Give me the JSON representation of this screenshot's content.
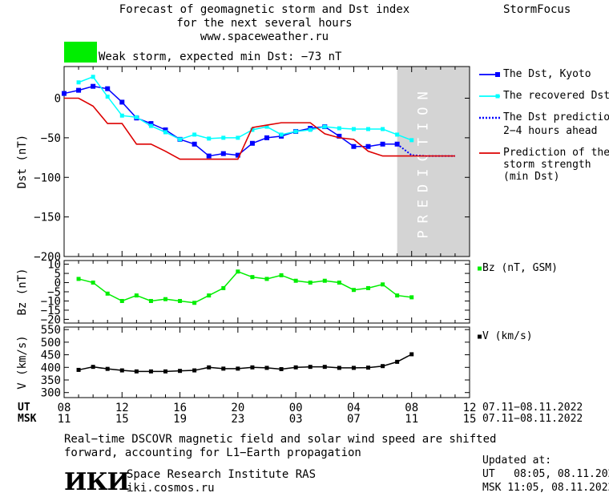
{
  "header": {
    "title_lines": [
      "Forecast of geomagnetic storm and Dst index",
      "for the next several hours",
      "www.spaceweather.ru"
    ],
    "brand": "StormFocus",
    "storm_label": "Weak storm, expected min Dst: −73 nT",
    "storm_color": "#00ee00"
  },
  "legend": {
    "kyoto": "The Dst, Kyoto",
    "recovered": "The recovered Dst",
    "prediction_1": "The Dst prediction",
    "prediction_2": "2−4 hours ahead",
    "strength_1": "Prediction of the",
    "strength_2": "storm strength",
    "strength_3": "(min Dst)",
    "bz": "Bz (nT, GSM)",
    "v": "V (km/s)"
  },
  "axis_labels": {
    "ut": "UT",
    "msk": "MSK",
    "ut_range": "07.11−08.11.2022",
    "msk_range": "07.11−08.11.2022"
  },
  "footer": {
    "note_1": "Real−time DSCOVR magnetic field and solar wind speed are shifted",
    "note_2": "forward, accounting for L1−Earth propagation",
    "logo": "ИКИ",
    "institute": "Space Research Institute RAS",
    "website": "iki.cosmos.ru",
    "updated_label": "Updated at:",
    "updated_ut": "UT   08:05, 08.11.2022",
    "updated_msk": "MSK 11:05, 08.11.2022"
  },
  "chart_data": {
    "x_range": [
      8,
      36
    ],
    "x_ticks_ut": [
      "08",
      "12",
      "16",
      "20",
      "00",
      "04",
      "08",
      "12"
    ],
    "x_ticks_msk": [
      "11",
      "15",
      "19",
      "23",
      "03",
      "07",
      "11",
      "15"
    ],
    "prediction_label": "PREDICTION",
    "prediction_start": 31,
    "colors": {
      "kyoto": "#0000ff",
      "recovered": "#00ffff",
      "prediction": "#0000ff",
      "strength": "#dd0000",
      "bz": "#00ee00",
      "v": "#000000",
      "shade": "#d4d4d4"
    },
    "panels": [
      {
        "name": "dst",
        "ylabel": "Dst (nT)",
        "ylim": [
          -200,
          40
        ],
        "yticks": [
          "0",
          "−50",
          "−100",
          "−150",
          "−200"
        ],
        "ytick_values": [
          0,
          -50,
          -100,
          -150,
          -200
        ],
        "series": [
          {
            "key": "kyoto",
            "x": [
              8,
              9,
              10,
              11,
              12,
              13,
              14,
              15,
              16,
              17,
              18,
              19,
              20,
              21,
              22,
              23,
              24,
              25,
              26,
              27,
              28,
              29,
              30,
              31
            ],
            "y": [
              6,
              10,
              15,
              12,
              -5,
              -25,
              -32,
              -40,
              -52,
              -58,
              -73,
              -70,
              -72,
              -57,
              -50,
              -48,
              -42,
              -38,
              -36,
              -48,
              -61,
              -61,
              -58,
              -58
            ]
          },
          {
            "key": "recovered",
            "x": [
              9,
              10,
              11,
              12,
              13,
              14,
              15,
              16,
              17,
              18,
              19,
              20,
              21,
              22,
              23,
              24,
              25,
              26,
              27,
              28,
              29,
              30,
              31,
              32
            ],
            "y": [
              20,
              27,
              2,
              -22,
              -24,
              -35,
              -43,
              -52,
              -46,
              -51,
              -50,
              -50,
              -40,
              -36,
              -46,
              -42,
              -40,
              -36,
              -38,
              -39,
              -39,
              -39,
              -46,
              -53
            ]
          },
          {
            "key": "prediction",
            "x": [
              31,
              32,
              33,
              34,
              35
            ],
            "y": [
              -58,
              -72,
              -73,
              -73,
              -73
            ]
          },
          {
            "key": "strength",
            "x": [
              8,
              9,
              10,
              11,
              12,
              13,
              14,
              15,
              16,
              17,
              18,
              19,
              20,
              21,
              22,
              23,
              24,
              25,
              26,
              27,
              28,
              29,
              30,
              31,
              32,
              33,
              34,
              35
            ],
            "y": [
              0,
              0,
              -10,
              -32,
              -32,
              -58,
              -58,
              -67,
              -77,
              -77,
              -77,
              -77,
              -77,
              -37,
              -34,
              -31,
              -31,
              -31,
              -45,
              -50,
              -52,
              -67,
              -73,
              -73,
              -73,
              -73,
              -73,
              -73
            ]
          }
        ]
      },
      {
        "name": "bz",
        "ylabel": "Bz (nT)",
        "ylim": [
          -22,
          12
        ],
        "yticks": [
          "10",
          "5",
          "0",
          "−5",
          "−10",
          "−15",
          "−20"
        ],
        "ytick_values": [
          10,
          5,
          0,
          -5,
          -10,
          -15,
          -20
        ],
        "series": [
          {
            "key": "bz",
            "x": [
              9,
              10,
              11,
              12,
              13,
              14,
              15,
              16,
              17,
              18,
              19,
              20,
              21,
              22,
              23,
              24,
              25,
              26,
              27,
              28,
              29,
              30,
              31,
              32
            ],
            "y": [
              2,
              0,
              -6,
              -10,
              -7,
              -10,
              -9,
              -10,
              -11,
              -7,
              -3,
              6,
              3,
              2,
              4,
              1,
              0,
              1,
              0,
              -4,
              -3,
              -1,
              -7,
              -8
            ]
          }
        ]
      },
      {
        "name": "v",
        "ylabel": "V (km/s)",
        "ylim": [
          280,
          560
        ],
        "yticks": [
          "550",
          "500",
          "450",
          "400",
          "350",
          "300"
        ],
        "ytick_values": [
          550,
          500,
          450,
          400,
          350,
          300
        ],
        "series": [
          {
            "key": "v",
            "x": [
              9,
              10,
              11,
              12,
              13,
              14,
              15,
              16,
              17,
              18,
              19,
              20,
              21,
              22,
              23,
              24,
              25,
              26,
              27,
              28,
              29,
              30,
              31,
              32
            ],
            "y": [
              390,
              402,
              394,
              388,
              384,
              384,
              384,
              386,
              388,
              400,
              395,
              395,
              400,
              398,
              393,
              400,
              402,
              402,
              398,
              398,
              399,
              405,
              422,
              452
            ]
          }
        ]
      }
    ]
  }
}
